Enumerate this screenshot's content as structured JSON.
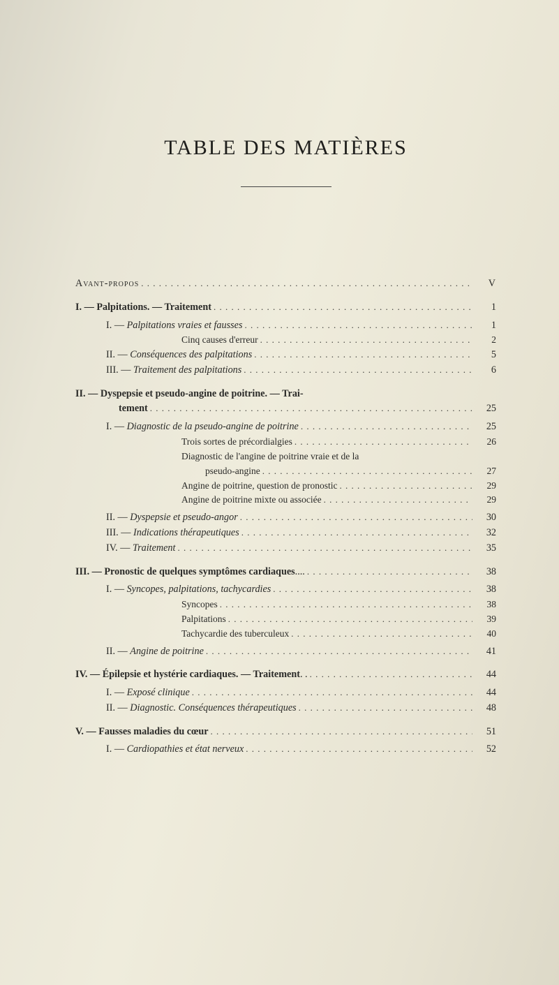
{
  "title": "TABLE DES MATIÈRES",
  "entries": [
    {
      "cls": "row ind0 sc",
      "label": "Avant-propos",
      "page": "V"
    },
    {
      "cls": "row ind0 gap-above",
      "label_html": "<span class='chap'>I. — Palpitations. — Traitement</span>",
      "page": "1"
    },
    {
      "cls": "row ind1 sgap-above",
      "label_html": "I. — <span class='i'>Palpitations vraies et fausses</span>",
      "page": "1"
    },
    {
      "cls": "row ind3 smaller",
      "label": "Cinq causes d'erreur",
      "page": "2"
    },
    {
      "cls": "row ind1",
      "label_html": "II. — <span class='i'>Conséquences des palpitations</span>",
      "page": "5"
    },
    {
      "cls": "row ind1",
      "label_html": "III. — <span class='i'>Traitement des palpitations</span>",
      "page": "6"
    },
    {
      "cls": "row ind0 gap-above",
      "label_html": "<span class='chap'>II. — Dyspepsie et pseudo-angine de poitrine. — Trai-</span>",
      "page": ""
    },
    {
      "cls": "row ind0",
      "label_html": "<span class='chap' style='padding-left:62px'>tement</span>",
      "page": "25"
    },
    {
      "cls": "row ind1 sgap-above",
      "label_html": "I. — <span class='i'>Diagnostic de la pseudo-angine de poitrine</span>",
      "page": "25"
    },
    {
      "cls": "row ind3 smaller",
      "label": "Trois sortes de précordialgies",
      "page": "26"
    },
    {
      "cls": "row ind3 smaller",
      "label": "Diagnostic de l'angine de poitrine vraie et de la",
      "page": ""
    },
    {
      "cls": "row ind4 smaller",
      "label": "pseudo-angine",
      "page": "27"
    },
    {
      "cls": "row ind3 smaller",
      "label": "Angine de poitrine, question de pronostic",
      "page": "29"
    },
    {
      "cls": "row ind3 smaller",
      "label": "Angine de poitrine mixte ou associée",
      "page": "29"
    },
    {
      "cls": "row ind1 sgap-above",
      "label_html": "II. — <span class='i'>Dyspepsie et pseudo-angor</span>",
      "page": "30"
    },
    {
      "cls": "row ind1",
      "label_html": "III. — <span class='i'>Indications thérapeutiques</span>",
      "page": "32"
    },
    {
      "cls": "row ind1",
      "label_html": "IV. — <span class='i'>Traitement</span>",
      "page": "35"
    },
    {
      "cls": "row ind0 gap-above",
      "label_html": "<span class='chap'>III. — Pronostic de quelques symptômes cardiaques</span>....",
      "page": "38"
    },
    {
      "cls": "row ind1 sgap-above",
      "label_html": "I. — <span class='i'>Syncopes, palpitations, tachycardies</span>",
      "page": "38"
    },
    {
      "cls": "row ind3 smaller",
      "label": "Syncopes",
      "page": "38"
    },
    {
      "cls": "row ind3 smaller",
      "label": "Palpitations",
      "page": "39"
    },
    {
      "cls": "row ind3 smaller",
      "label": "Tachycardie des tuberculeux",
      "page": "40"
    },
    {
      "cls": "row ind1 sgap-above",
      "label_html": "II. — <span class='i'>Angine de poitrine</span>",
      "page": "41"
    },
    {
      "cls": "row ind0 gap-above",
      "label_html": "<span class='chap'>IV. — Épilepsie et hystérie cardiaques. — Traitement</span>. .",
      "page": "44"
    },
    {
      "cls": "row ind1 sgap-above",
      "label_html": "I. — <span class='i'>Exposé clinique</span>",
      "page": "44"
    },
    {
      "cls": "row ind1",
      "label_html": "II. — <span class='i'>Diagnostic. Conséquences thérapeutiques</span>",
      "page": "48"
    },
    {
      "cls": "row ind0 gap-above",
      "label_html": "<span class='chap'>V. — Fausses maladies du cœur</span>",
      "page": "51"
    },
    {
      "cls": "row ind1 sgap-above",
      "label_html": "I. — <span class='i'>Cardiopathies et état nerveux</span>",
      "page": "52"
    }
  ]
}
